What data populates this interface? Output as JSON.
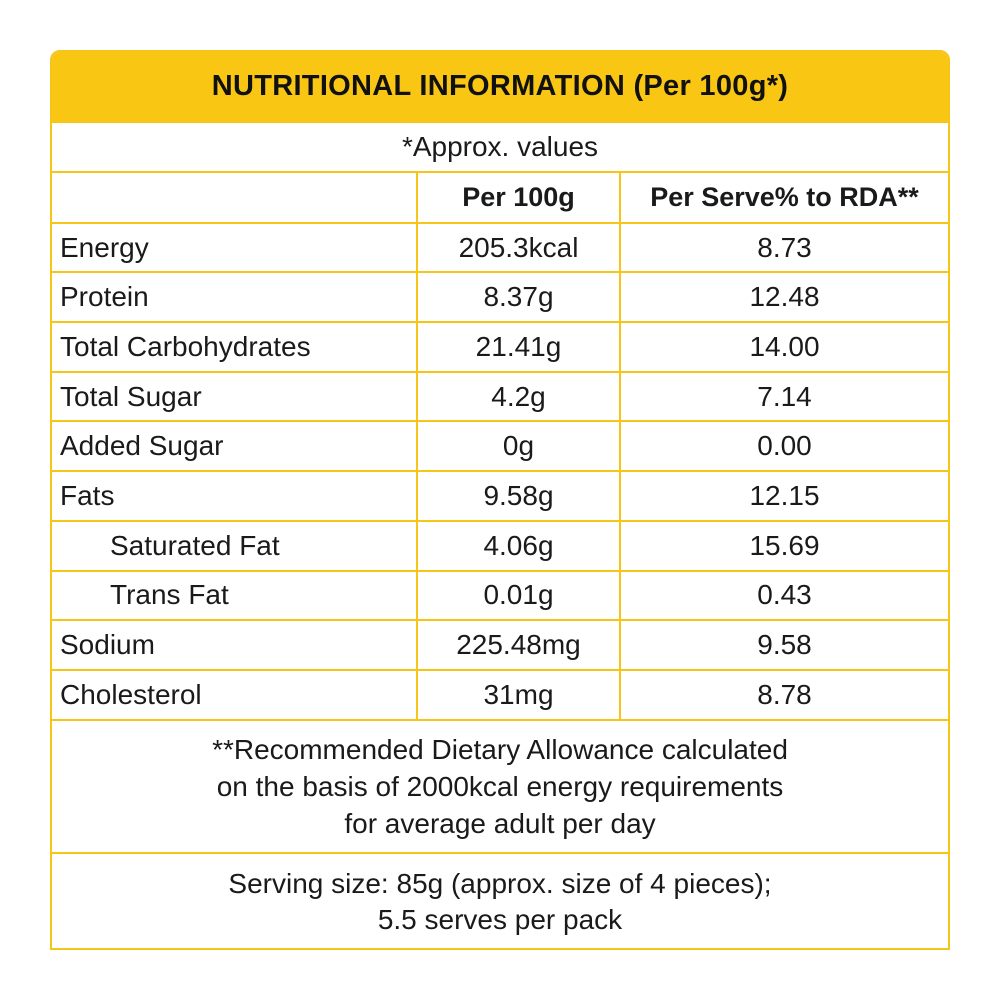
{
  "colors": {
    "accent": "#f9c613",
    "border": "#f5c518",
    "text": "#1a1a1a"
  },
  "title": "NUTRITIONAL INFORMATION (Per 100g*)",
  "approx_note": "*Approx. values",
  "table": {
    "headers": [
      "",
      "Per 100g",
      "Per Serve% to RDA**"
    ],
    "rows": [
      {
        "name": "Energy",
        "per100g": "205.3kcal",
        "rda": "8.73"
      },
      {
        "name": "Protein",
        "per100g": "8.37g",
        "rda": "12.48"
      },
      {
        "name": "Total Carbohydrates",
        "per100g": "21.41g",
        "rda": "14.00"
      },
      {
        "name": "Total Sugar",
        "per100g": "4.2g",
        "rda": "7.14"
      },
      {
        "name": "Added Sugar",
        "per100g": "0g",
        "rda": "0.00"
      },
      {
        "name": "Fats",
        "per100g": "9.58g",
        "rda": "12.15"
      },
      {
        "name": "Saturated Fat",
        "per100g": "4.06g",
        "rda": "15.69"
      },
      {
        "name": "Trans Fat",
        "per100g": "0.01g",
        "rda": "0.43"
      },
      {
        "name": "Sodium",
        "per100g": "225.48mg",
        "rda": "9.58"
      },
      {
        "name": "Cholesterol",
        "per100g": "31mg",
        "rda": "8.78"
      }
    ]
  },
  "footnote": {
    "line1": "**Recommended Dietary Allowance calculated",
    "line2": "on the basis of 2000kcal energy requirements",
    "line3": "for average adult per day"
  },
  "serving": {
    "line1": "Serving size: 85g (approx. size of 4 pieces);",
    "line2": "5.5 serves per pack"
  }
}
